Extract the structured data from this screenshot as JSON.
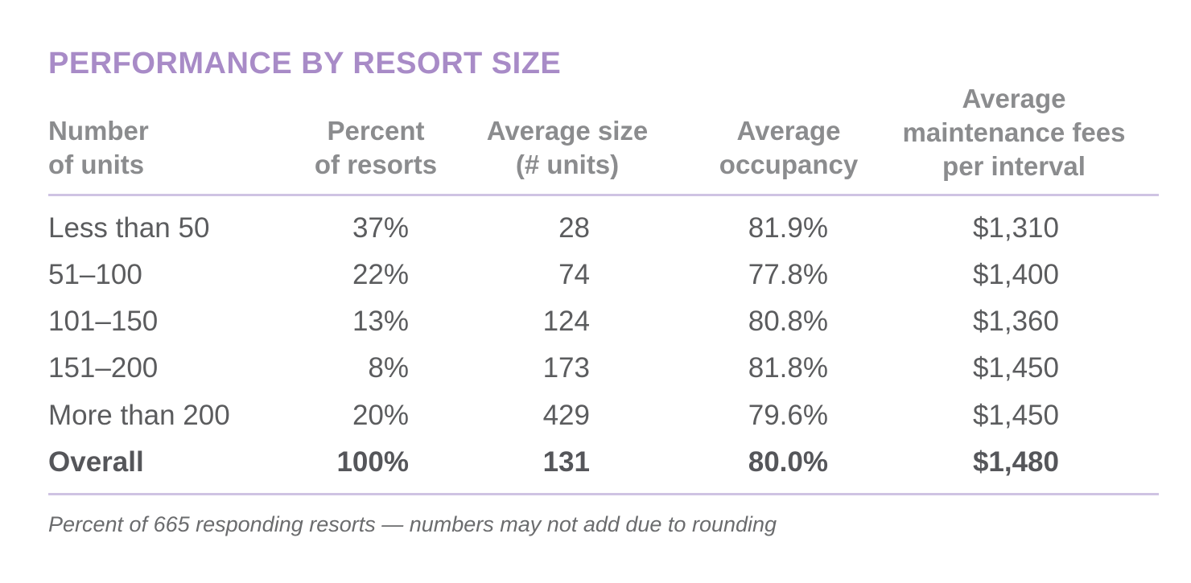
{
  "chart_data": {
    "type": "table",
    "title": "PERFORMANCE BY RESORT SIZE",
    "columns": [
      "Number\nof units",
      "Percent\nof resorts",
      "Average size\n(# units)",
      "Average\noccupancy",
      "Average\nmaintenance fees\nper interval"
    ],
    "rows": [
      [
        "Less than 50",
        "37%",
        "28",
        "81.9%",
        "$1,310"
      ],
      [
        "51–100",
        "22%",
        "74",
        "77.8%",
        "$1,400"
      ],
      [
        "101–150",
        "13%",
        "124",
        "80.8%",
        "$1,360"
      ],
      [
        "151–200",
        "8%",
        "173",
        "81.8%",
        "$1,450"
      ],
      [
        "More than 200",
        "20%",
        "429",
        "79.6%",
        "$1,450"
      ],
      [
        "Overall",
        "100%",
        "131",
        "80.0%",
        "$1,480"
      ]
    ],
    "footnote": "Percent of 665 responding resorts — numbers may not add due to rounding"
  },
  "colors": {
    "title": "#a88bc7",
    "header": "#8b8c8e",
    "body": "#5b5c5e",
    "rule": "#cfc3e3"
  }
}
